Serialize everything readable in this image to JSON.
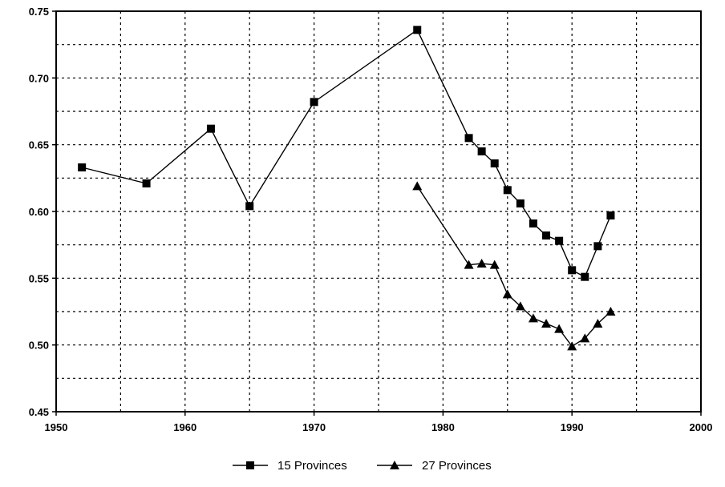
{
  "chart_data": {
    "type": "line",
    "title": "",
    "xlabel": "",
    "ylabel": "",
    "xlim": [
      1950,
      2000
    ],
    "ylim": [
      0.45,
      0.75
    ],
    "x_ticks": [
      1950,
      1960,
      1970,
      1980,
      1990,
      2000
    ],
    "x_tick_labels": [
      "1950",
      "1960",
      "1970",
      "1980",
      "1990",
      "2000"
    ],
    "y_ticks": [
      0.45,
      0.5,
      0.55,
      0.6,
      0.65,
      0.7,
      0.75
    ],
    "y_tick_labels": [
      "0.45",
      "0.50",
      "0.55",
      "0.60",
      "0.65",
      "0.70",
      "0.75"
    ],
    "x_gridlines": [
      1955,
      1960,
      1965,
      1970,
      1975,
      1980,
      1985,
      1990,
      1995
    ],
    "y_gridlines": [
      0.475,
      0.5,
      0.525,
      0.55,
      0.575,
      0.6,
      0.625,
      0.65,
      0.675,
      0.7,
      0.725
    ],
    "grid": true,
    "legend_position": "bottom",
    "series": [
      {
        "name": "15 Provinces",
        "marker": "square",
        "color": "#000000",
        "x": [
          1952,
          1957,
          1962,
          1965,
          1970,
          1978,
          1982,
          1983,
          1984,
          1985,
          1986,
          1987,
          1988,
          1989,
          1990,
          1991,
          1992,
          1993
        ],
        "y": [
          0.633,
          0.621,
          0.662,
          0.604,
          0.682,
          0.736,
          0.655,
          0.645,
          0.636,
          0.616,
          0.606,
          0.591,
          0.582,
          0.578,
          0.556,
          0.551,
          0.574,
          0.597
        ]
      },
      {
        "name": "27 Provinces",
        "marker": "triangle",
        "color": "#000000",
        "x": [
          1978,
          1982,
          1983,
          1984,
          1985,
          1986,
          1987,
          1988,
          1989,
          1990,
          1991,
          1992,
          1993
        ],
        "y": [
          0.619,
          0.56,
          0.561,
          0.56,
          0.538,
          0.529,
          0.52,
          0.516,
          0.512,
          0.499,
          0.505,
          0.516,
          0.525
        ]
      }
    ]
  }
}
